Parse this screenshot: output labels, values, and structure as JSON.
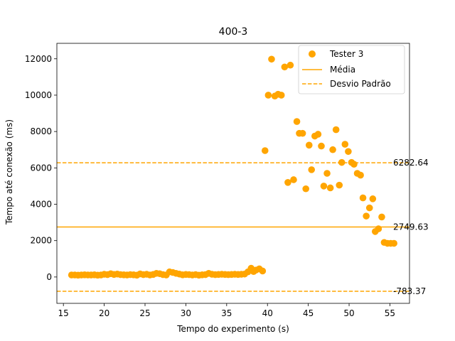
{
  "chart_data": {
    "type": "scatter",
    "title": "400-3",
    "xlabel": "Tempo do experimento (s)",
    "ylabel": "Tempo até conexão (ms)",
    "xlim": [
      14.2,
      57.4
    ],
    "ylim": [
      -1450,
      12850
    ],
    "xticks": [
      15,
      20,
      25,
      30,
      35,
      40,
      45,
      50,
      55
    ],
    "yticks": [
      0,
      2000,
      4000,
      6000,
      8000,
      10000,
      12000
    ],
    "grid": false,
    "legend_position": "top-right",
    "colors": {
      "series": "#FFA500"
    },
    "series": [
      {
        "name": "Tester 3",
        "x": [
          16.0,
          16.4,
          16.8,
          17.2,
          17.6,
          18.0,
          18.4,
          18.8,
          19.2,
          19.6,
          20.0,
          20.4,
          20.8,
          21.2,
          21.6,
          22.0,
          22.4,
          22.8,
          23.2,
          23.6,
          24.0,
          24.4,
          24.8,
          25.2,
          25.6,
          26.0,
          26.4,
          26.8,
          27.2,
          27.6,
          28.0,
          28.4,
          28.8,
          29.2,
          29.6,
          30.0,
          30.4,
          30.8,
          31.2,
          31.6,
          32.0,
          32.4,
          32.8,
          33.2,
          33.6,
          34.0,
          34.4,
          34.8,
          35.2,
          35.6,
          36.0,
          36.4,
          36.8,
          37.2,
          37.6,
          38.0,
          38.3,
          38.6,
          39.0,
          39.4,
          39.7,
          40.1,
          40.5,
          40.9,
          41.3,
          41.7,
          42.1,
          42.5,
          42.8,
          43.2,
          43.6,
          43.9,
          44.3,
          44.7,
          45.1,
          45.4,
          45.8,
          46.2,
          46.6,
          46.9,
          47.3,
          47.7,
          48.0,
          48.4,
          48.8,
          49.1,
          49.5,
          49.9,
          50.3,
          50.6,
          51.0,
          51.4,
          51.7,
          52.1,
          52.5,
          52.9,
          53.2,
          53.6,
          54.0,
          54.3,
          54.7,
          55.1,
          55.5
        ],
        "y": [
          110,
          110,
          100,
          110,
          120,
          110,
          110,
          120,
          100,
          110,
          150,
          130,
          180,
          140,
          160,
          130,
          120,
          110,
          130,
          120,
          100,
          170,
          130,
          150,
          110,
          140,
          200,
          180,
          130,
          110,
          280,
          250,
          200,
          160,
          120,
          140,
          130,
          110,
          130,
          100,
          120,
          130,
          200,
          150,
          130,
          140,
          150,
          140,
          130,
          140,
          150,
          140,
          150,
          160,
          280,
          480,
          300,
          380,
          450,
          330,
          6950,
          10000,
          11980,
          9950,
          10050,
          10000,
          11550,
          5200,
          11650,
          5350,
          8550,
          7900,
          7900,
          4850,
          7250,
          5900,
          7750,
          7850,
          7200,
          5000,
          5700,
          4900,
          7000,
          8100,
          5050,
          6300,
          7300,
          6900,
          6300,
          6200,
          5700,
          5600,
          4350,
          3350,
          3800,
          4300,
          2500,
          2650,
          3300,
          1900,
          1850,
          1850,
          1850
        ]
      }
    ],
    "reference_lines": [
      {
        "name": "Média",
        "value": 2749.63,
        "style": "solid",
        "label": "2749.63"
      },
      {
        "name": "Desvio Padrão",
        "value": 6282.64,
        "style": "dashed",
        "label": "6282.64"
      },
      {
        "value": -783.37,
        "style": "dashed",
        "label": "-783.37"
      }
    ]
  }
}
